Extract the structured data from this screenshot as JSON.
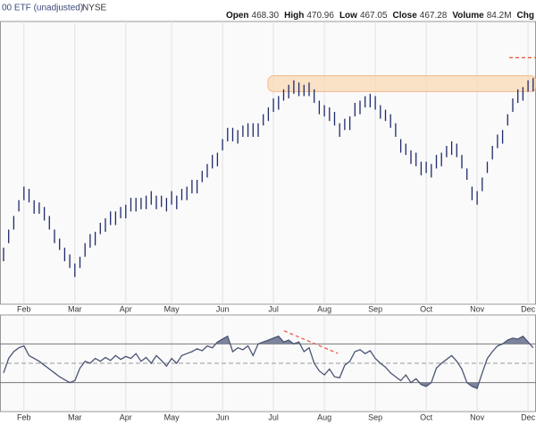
{
  "header": {
    "symbol_text": "00 ETF (unadjusted)",
    "exchange": "NYSE",
    "quote": [
      {
        "label": "Open",
        "value": "468.30"
      },
      {
        "label": "High",
        "value": "470.96"
      },
      {
        "label": "Low",
        "value": "467.05"
      },
      {
        "label": "Close",
        "value": "467.28"
      },
      {
        "label": "Volume",
        "value": "84.2M"
      }
    ],
    "chg_label": "Chg"
  },
  "chart_data": [
    {
      "type": "ohlc",
      "color": "#1f2a6b",
      "categories": [
        null,
        null,
        null,
        null,
        "Feb",
        null,
        null,
        null,
        null,
        null,
        null,
        null,
        null,
        null,
        "Mar",
        null,
        null,
        null,
        null,
        null,
        null,
        null,
        null,
        null,
        "Apr",
        null,
        null,
        null,
        null,
        null,
        null,
        null,
        null,
        "May",
        null,
        null,
        null,
        null,
        null,
        null,
        null,
        null,
        null,
        "Jun",
        null,
        null,
        null,
        null,
        null,
        null,
        null,
        null,
        null,
        "Jul",
        null,
        null,
        null,
        null,
        null,
        null,
        null,
        null,
        null,
        "Aug",
        null,
        null,
        null,
        null,
        null,
        null,
        null,
        null,
        null,
        "Sep",
        null,
        null,
        null,
        null,
        null,
        null,
        null,
        null,
        null,
        "Oct",
        null,
        null,
        null,
        null,
        null,
        null,
        null,
        null,
        null,
        "Nov",
        null,
        null,
        null,
        null,
        null,
        null,
        null,
        null,
        null,
        "Dec",
        null
      ],
      "high": [
        395,
        403,
        409,
        416,
        422,
        421,
        416,
        415,
        413,
        409,
        403,
        399,
        395,
        392,
        388,
        391,
        397,
        401,
        402,
        406,
        408,
        411,
        411,
        413,
        414,
        417,
        417,
        417,
        418,
        420,
        418,
        418,
        417,
        420,
        418,
        421,
        422,
        425,
        425,
        429,
        432,
        436,
        437,
        443,
        448,
        448,
        447,
        449,
        450,
        450,
        450,
        454,
        457,
        461,
        462,
        465,
        467,
        469,
        468,
        467,
        468,
        465,
        460,
        458,
        457,
        455,
        450,
        452,
        453,
        459,
        460,
        462,
        463,
        462,
        458,
        456,
        454,
        450,
        443,
        441,
        438,
        437,
        433,
        433,
        432,
        436,
        437,
        440,
        442,
        441,
        436,
        430,
        422,
        420,
        426,
        433,
        440,
        445,
        447,
        454,
        461,
        465,
        466,
        469,
        470
      ],
      "low": [
        389,
        397,
        403,
        411,
        416,
        415,
        410,
        410,
        407,
        403,
        397,
        394,
        389,
        386,
        382,
        386,
        391,
        395,
        396,
        401,
        402,
        405,
        405,
        408,
        408,
        411,
        411,
        412,
        412,
        414,
        412,
        413,
        411,
        414,
        412,
        416,
        416,
        419,
        419,
        424,
        426,
        430,
        431,
        438,
        442,
        442,
        441,
        444,
        444,
        444,
        444,
        449,
        451,
        455,
        456,
        460,
        461,
        463,
        462,
        462,
        462,
        459,
        454,
        453,
        451,
        449,
        444,
        447,
        447,
        453,
        454,
        457,
        457,
        456,
        452,
        451,
        448,
        444,
        437,
        436,
        432,
        431,
        427,
        428,
        426,
        430,
        431,
        435,
        436,
        435,
        430,
        425,
        416,
        414,
        420,
        428,
        434,
        439,
        441,
        449,
        455,
        459,
        460,
        464,
        464
      ],
      "ylim": [
        370,
        495
      ],
      "highlight_band": [
        464,
        471
      ],
      "dashed_level": 479
    },
    {
      "type": "line",
      "color": "#4a5575",
      "fill": "#7c839c",
      "categories": [
        null,
        null,
        null,
        null,
        "Feb",
        null,
        null,
        null,
        null,
        null,
        null,
        null,
        null,
        null,
        "Mar",
        null,
        null,
        null,
        null,
        null,
        null,
        null,
        null,
        null,
        "Apr",
        null,
        null,
        null,
        null,
        null,
        null,
        null,
        null,
        "May",
        null,
        null,
        null,
        null,
        null,
        null,
        null,
        null,
        null,
        "Jun",
        null,
        null,
        null,
        null,
        null,
        null,
        null,
        null,
        null,
        "Jul",
        null,
        null,
        null,
        null,
        null,
        null,
        null,
        null,
        null,
        "Aug",
        null,
        null,
        null,
        null,
        null,
        null,
        null,
        null,
        null,
        "Sep",
        null,
        null,
        null,
        null,
        null,
        null,
        null,
        null,
        null,
        "Oct",
        null,
        null,
        null,
        null,
        null,
        null,
        null,
        null,
        null,
        "Nov",
        null,
        null,
        null,
        null,
        null,
        null,
        null,
        null,
        null,
        "Dec",
        null
      ],
      "values": [
        40,
        55,
        62,
        66,
        68,
        58,
        55,
        52,
        48,
        44,
        40,
        36,
        33,
        30,
        32,
        45,
        52,
        50,
        55,
        52,
        56,
        53,
        58,
        54,
        57,
        55,
        60,
        52,
        56,
        50,
        58,
        53,
        47,
        55,
        50,
        58,
        60,
        62,
        65,
        63,
        68,
        66,
        72,
        75,
        78,
        62,
        66,
        64,
        68,
        58,
        70,
        72,
        74,
        76,
        78,
        72,
        74,
        70,
        72,
        62,
        66,
        50,
        42,
        38,
        44,
        36,
        35,
        48,
        52,
        62,
        64,
        60,
        63,
        55,
        50,
        46,
        40,
        36,
        32,
        38,
        30,
        34,
        28,
        26,
        30,
        45,
        50,
        54,
        58,
        52,
        44,
        30,
        26,
        24,
        40,
        55,
        62,
        68,
        70,
        74,
        76,
        75,
        78,
        72,
        66
      ],
      "ylim": [
        0,
        100
      ],
      "levels": [
        30,
        50,
        70
      ],
      "trend_line": [
        78,
        64
      ]
    }
  ]
}
